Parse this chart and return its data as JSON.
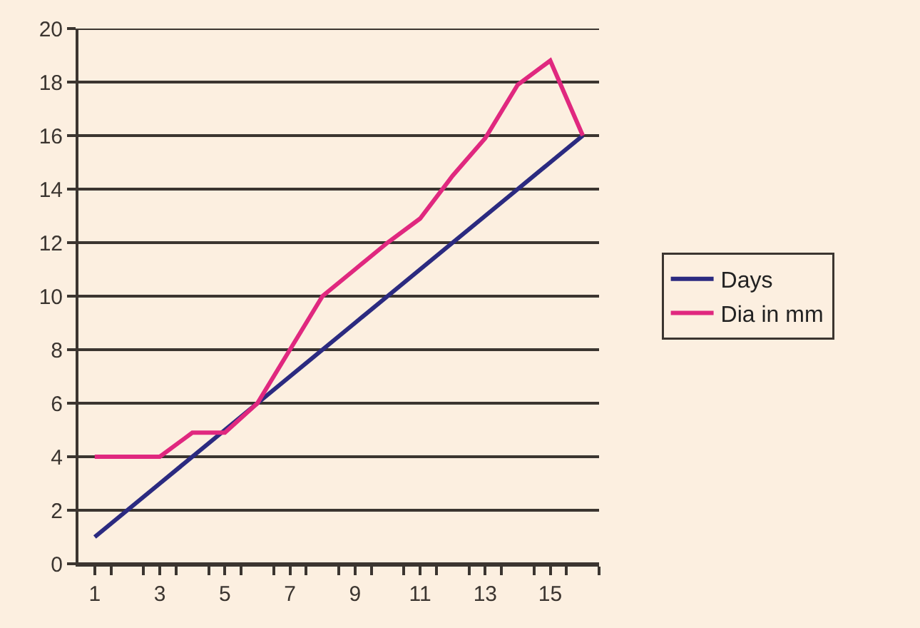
{
  "chart_data": {
    "type": "line",
    "x": [
      1,
      2,
      3,
      4,
      5,
      6,
      7,
      8,
      9,
      10,
      11,
      12,
      13,
      14,
      15,
      16
    ],
    "series": [
      {
        "name": "Days",
        "color": "#2b2a80",
        "values": [
          1,
          2,
          3,
          4,
          5,
          6,
          7,
          8,
          9,
          10,
          11,
          12,
          13,
          14,
          15,
          16
        ]
      },
      {
        "name": "Dia in mm",
        "color": "#e0287f",
        "values": [
          4,
          4,
          4,
          4.9,
          4.9,
          6,
          8,
          10,
          11,
          12,
          12.9,
          14.5,
          15.9,
          17.9,
          18.8,
          16
        ]
      }
    ],
    "xlim": [
      0.5,
      16.5
    ],
    "xticks": [
      1,
      {
        "value": 1.5,
        "label": null
      },
      {
        "value": 2.5,
        "label": null
      },
      3,
      {
        "value": 3.5,
        "label": null
      },
      {
        "value": 4.5,
        "label": null
      },
      5,
      {
        "value": 5.5,
        "label": null
      },
      {
        "value": 6.5,
        "label": null
      },
      7,
      {
        "value": 7.5,
        "label": null
      },
      {
        "value": 8.5,
        "label": null
      },
      9,
      {
        "value": 9.5,
        "label": null
      },
      {
        "value": 10.5,
        "label": null
      },
      11,
      {
        "value": 11.5,
        "label": null
      },
      {
        "value": 12.5,
        "label": null
      },
      13,
      {
        "value": 13.5,
        "label": null
      },
      {
        "value": 14.5,
        "label": null
      },
      15,
      {
        "value": 15.5,
        "label": null
      },
      {
        "value": 16.5,
        "label": null
      }
    ],
    "ylim": [
      0,
      20
    ],
    "yticks": [
      0,
      2,
      4,
      6,
      8,
      10,
      12,
      14,
      16,
      18,
      20
    ],
    "grid": "y",
    "legend": "right",
    "marker": "none",
    "line_style": "solid"
  }
}
